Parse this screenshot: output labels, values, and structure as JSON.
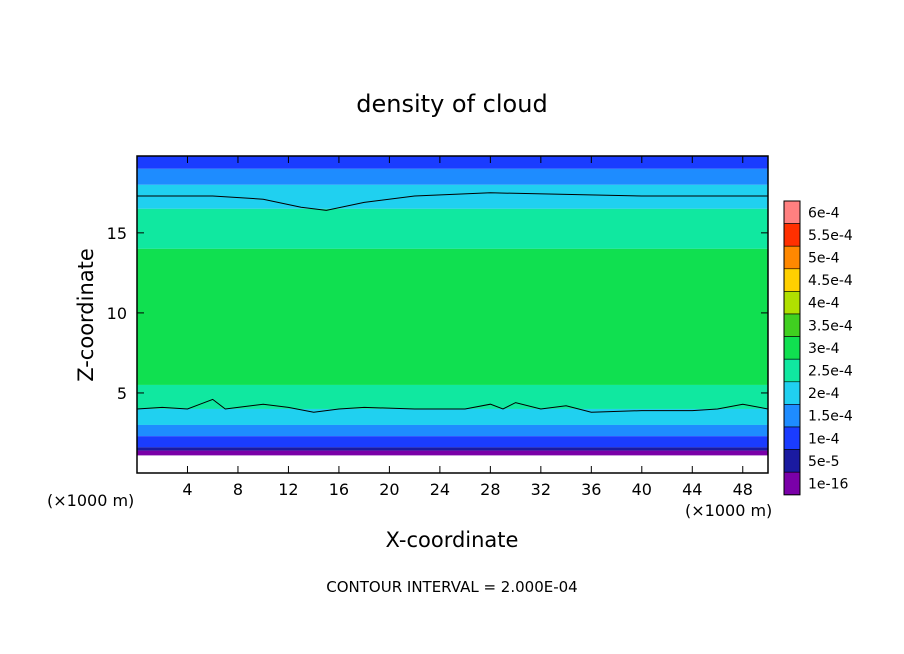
{
  "chart_data": {
    "type": "heatmap",
    "title": "density of cloud",
    "xlabel": "X-coordinate",
    "ylabel": "Z-coordinate",
    "x_unit": "(×1000 m)",
    "z_unit": "(×1000 m)",
    "xlim": [
      0,
      50
    ],
    "ylim": [
      0,
      19.8
    ],
    "x_ticks": [
      4,
      8,
      12,
      16,
      20,
      24,
      28,
      32,
      36,
      40,
      44,
      48
    ],
    "y_ticks": [
      5,
      10,
      15
    ],
    "footer": "CONTOUR INTERVAL = 2.000E-04",
    "colorbar": {
      "placement": "right",
      "levels": [
        "1e-16",
        "5e-5",
        "1e-4",
        "1.5e-4",
        "2e-4",
        "2.5e-4",
        "3e-4",
        "3.5e-4",
        "4e-4",
        "4.5e-4",
        "5e-4",
        "5.5e-4",
        "6e-4"
      ],
      "colors": [
        "#7a00a8",
        "#1a1aa0",
        "#1a3cff",
        "#1e8cff",
        "#20d0f0",
        "#10e8a0",
        "#10e050",
        "#40d020",
        "#b0e000",
        "#ffd000",
        "#ff8800",
        "#ff3000",
        "#ff8080"
      ]
    },
    "zones": [
      {
        "z_from": 19.8,
        "z_to": 19.0,
        "color": "#1a3cff"
      },
      {
        "z_from": 19.0,
        "z_to": 18.0,
        "color": "#1e8cff"
      },
      {
        "z_from": 18.0,
        "z_to": 16.5,
        "color": "#20d0f0"
      },
      {
        "z_from": 16.5,
        "z_to": 14.0,
        "color": "#10e8a0"
      },
      {
        "z_from": 14.0,
        "z_to": 5.5,
        "color": "#10e050"
      },
      {
        "z_from": 5.5,
        "z_to": 4.0,
        "color": "#10e8a0"
      },
      {
        "z_from": 4.0,
        "z_to": 3.0,
        "color": "#20d0f0"
      },
      {
        "z_from": 3.0,
        "z_to": 2.3,
        "color": "#1e8cff"
      },
      {
        "z_from": 2.3,
        "z_to": 1.6,
        "color": "#1a3cff"
      },
      {
        "z_from": 1.6,
        "z_to": 1.4,
        "color": "#1a1aa0"
      },
      {
        "z_from": 1.4,
        "z_to": 1.1,
        "color": "#7a00a8"
      }
    ],
    "upper_contour": [
      [
        0,
        17.3
      ],
      [
        6,
        17.3
      ],
      [
        10,
        17.1
      ],
      [
        13,
        16.6
      ],
      [
        15,
        16.4
      ],
      [
        18,
        16.9
      ],
      [
        22,
        17.3
      ],
      [
        28,
        17.5
      ],
      [
        34,
        17.4
      ],
      [
        40,
        17.3
      ],
      [
        50,
        17.3
      ]
    ],
    "lower_contour": [
      [
        0,
        4.0
      ],
      [
        2,
        4.1
      ],
      [
        4,
        4.0
      ],
      [
        5,
        4.3
      ],
      [
        6,
        4.6
      ],
      [
        7,
        4.0
      ],
      [
        8,
        4.1
      ],
      [
        10,
        4.3
      ],
      [
        12,
        4.1
      ],
      [
        14,
        3.8
      ],
      [
        16,
        4.0
      ],
      [
        18,
        4.1
      ],
      [
        22,
        4.0
      ],
      [
        26,
        4.0
      ],
      [
        28,
        4.3
      ],
      [
        29,
        4.0
      ],
      [
        30,
        4.4
      ],
      [
        32,
        4.0
      ],
      [
        34,
        4.2
      ],
      [
        36,
        3.8
      ],
      [
        40,
        3.9
      ],
      [
        44,
        3.9
      ],
      [
        46,
        4.0
      ],
      [
        48,
        4.3
      ],
      [
        50,
        4.0
      ]
    ]
  }
}
